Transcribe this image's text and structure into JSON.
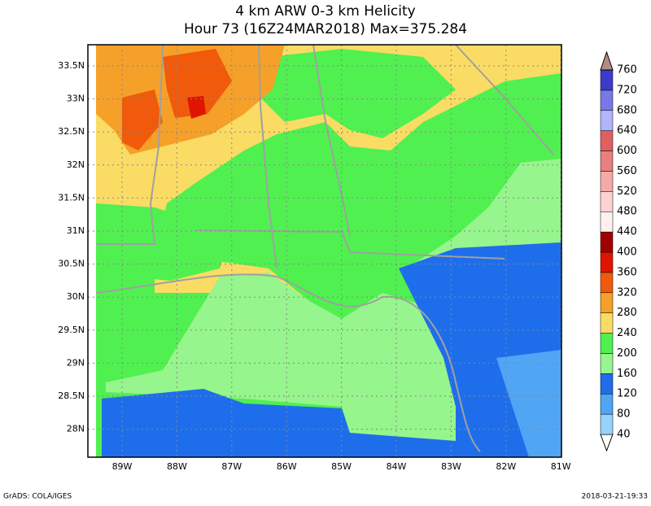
{
  "title": [
    "4 km ARW 0-3 km Helicity",
    "Hour 73 (16Z24MAR2018) Max=375.284"
  ],
  "lat_labels": [
    "33.5N",
    "33N",
    "32.5N",
    "32N",
    "31.5N",
    "31N",
    "30.5N",
    "30N",
    "29.5N",
    "29N",
    "28.5N",
    "28N"
  ],
  "lon_labels": [
    "89W",
    "88W",
    "87W",
    "86W",
    "85W",
    "84W",
    "83W",
    "82W",
    "81W"
  ],
  "colorbar": {
    "levels": [
      40,
      80,
      120,
      160,
      200,
      240,
      280,
      320,
      360,
      400,
      440,
      480,
      520,
      560,
      600,
      640,
      680,
      720,
      760
    ],
    "colors": [
      "#ffffff",
      "#96d2fa",
      "#50a5f5",
      "#1e6eeb",
      "#96f58c",
      "#50f050",
      "#fadc64",
      "#f5a028",
      "#f05a0a",
      "#e01400",
      "#a00000",
      "#fff0f0",
      "#fcd2d2",
      "#f5aaaa",
      "#e88080",
      "#e06060",
      "#b4b4fa",
      "#7878e6",
      "#3c3cc8",
      "#b48c82"
    ]
  },
  "footer_left": "GrADS: COLA/IGES",
  "footer_right": "2018-03-21-19:33"
}
